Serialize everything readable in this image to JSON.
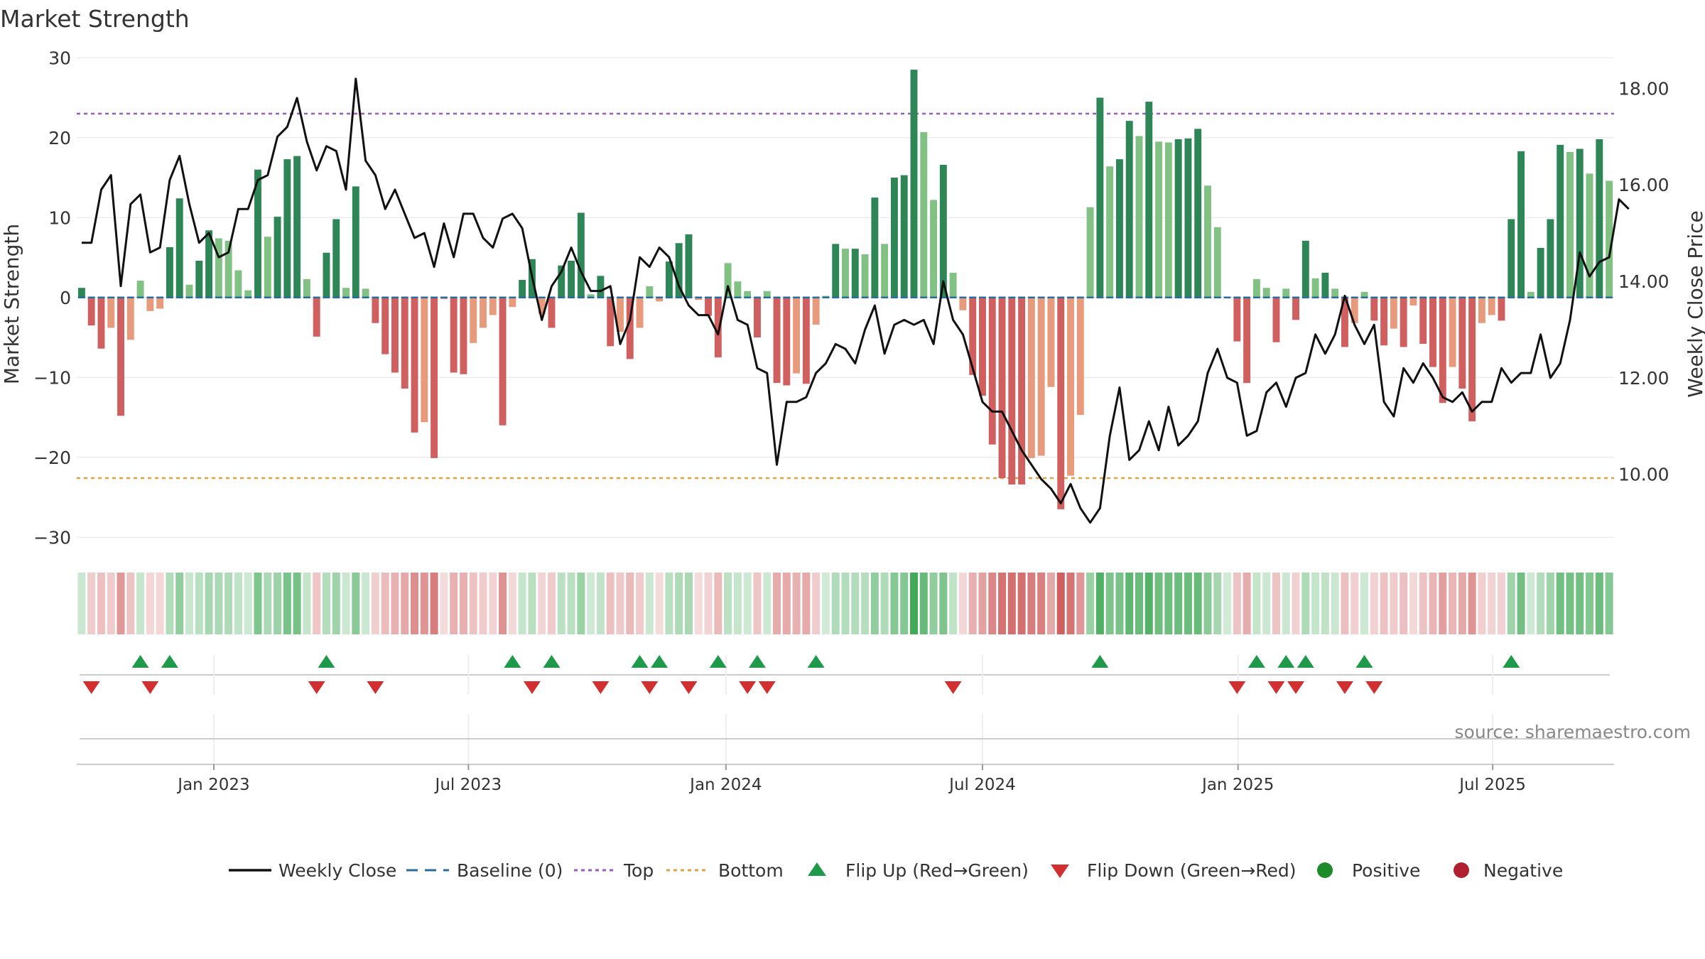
{
  "chart_data": {
    "type": "bar",
    "title": "Market Strength",
    "ylabel": "Market Strength",
    "y2label": "Weekly Close Price",
    "ylim": [
      -33,
      31
    ],
    "y2lim": [
      8.2,
      18.8
    ],
    "yticks": [
      30,
      20,
      10,
      0,
      -10,
      -20,
      -30
    ],
    "yticklabels": [
      "30",
      "20",
      "10",
      "0",
      "−10",
      "−20",
      "−30"
    ],
    "y2ticks": [
      18,
      16,
      14,
      12,
      10
    ],
    "y2ticklabels": [
      "18.00",
      "16.00",
      "14.00",
      "12.00",
      "10.00"
    ],
    "xlim": [
      0,
      157
    ],
    "xticks": [
      {
        "label": "Jan 2023",
        "week": 14
      },
      {
        "label": "Jul 2023",
        "week": 40
      },
      {
        "label": "Jan 2024",
        "week": 66.3
      },
      {
        "label": "Jul 2024",
        "week": 92.5
      },
      {
        "label": "Jan 2025",
        "week": 118.6
      },
      {
        "label": "Jul 2025",
        "week": 144.6
      }
    ],
    "top_line": 23,
    "bottom_line": -22.6,
    "strength": [
      1.2,
      -3.5,
      -6.4,
      -3.8,
      -14.8,
      -5.3,
      2.1,
      -1.7,
      -1.4,
      6.3,
      12.4,
      1.6,
      4.6,
      8.4,
      7.4,
      7.1,
      3.4,
      0.9,
      16,
      7.6,
      10.1,
      17.3,
      17.7,
      2.3,
      -4.9,
      5.6,
      9.8,
      1.2,
      13.9,
      1.1,
      -3.2,
      -7.1,
      -9.4,
      -11.4,
      -16.9,
      -15.6,
      -20.1,
      -0.2,
      -9.4,
      -9.6,
      -5.7,
      -3.8,
      -2.2,
      -16,
      -1.2,
      2.2,
      4.8,
      -2.1,
      -3.8,
      4,
      4.6,
      10.6,
      0.4,
      2.7,
      -6.1,
      -4.3,
      -7.7,
      -3.8,
      1.4,
      -0.5,
      4.5,
      6.8,
      7.9,
      -0.3,
      -2.3,
      -7.5,
      4.3,
      2,
      0.8,
      -5,
      0.8,
      -10.7,
      -11,
      -9.5,
      -10.8,
      -3.4,
      0.2,
      6.7,
      6.1,
      6.1,
      5.4,
      12.5,
      6.7,
      15,
      15.3,
      28.5,
      20.7,
      12.2,
      16.6,
      3.1,
      -1.6,
      -9.7,
      -12.3,
      -18.4,
      -22.6,
      -23.4,
      -23.4,
      -20.1,
      -19.8,
      -11.2,
      -26.5,
      -22.3,
      -14.7,
      11.3,
      25,
      16.4,
      17.3,
      22.1,
      20.2,
      24.5,
      19.5,
      19.4,
      19.8,
      19.9,
      21.1,
      14,
      8.8,
      0.1,
      -5.5,
      -10.7,
      2.3,
      1.2,
      -5.6,
      1.1,
      -2.8,
      7.1,
      2.4,
      3.1,
      1.1,
      -6.2,
      -3.2,
      0.7,
      -2.9,
      -6,
      -3.9,
      -6.2,
      -1,
      -5.8,
      -8.7,
      -13.2,
      -8.7,
      -11.4,
      -15.5,
      -3.2,
      -2.2,
      -2.9,
      9.8,
      18.3,
      0.7,
      6.2,
      9.8,
      19.1,
      18.2,
      18.6,
      15.5,
      19.8,
      14.6
    ],
    "weekly_close": [
      14.8,
      14.8,
      15.9,
      16.2,
      13.9,
      15.6,
      15.8,
      14.6,
      14.7,
      16.1,
      16.6,
      15.6,
      14.8,
      15,
      14.5,
      14.6,
      15.5,
      15.5,
      16.1,
      16.2,
      17,
      17.2,
      17.8,
      16.9,
      16.3,
      16.8,
      16.7,
      15.9,
      18.2,
      16.5,
      16.2,
      15.5,
      15.9,
      15.4,
      14.9,
      15,
      14.3,
      15.2,
      14.5,
      15.4,
      15.4,
      14.9,
      14.7,
      15.3,
      15.4,
      15.1,
      14.1,
      13.2,
      13.9,
      14.2,
      14.7,
      14.2,
      13.8,
      13.8,
      13.9,
      12.7,
      13.2,
      14.5,
      14.3,
      14.7,
      14.5,
      13.9,
      13.5,
      13.3,
      13.3,
      12.9,
      13.9,
      13.2,
      13.1,
      12.2,
      12.1,
      10.2,
      11.5,
      11.5,
      11.6,
      12.1,
      12.3,
      12.7,
      12.6,
      12.3,
      13,
      13.5,
      12.5,
      13.1,
      13.2,
      13.1,
      13.2,
      12.7,
      14,
      13.2,
      12.9,
      12.2,
      11.5,
      11.3,
      11.3,
      10.9,
      10.5,
      10.2,
      9.9,
      9.7,
      9.4,
      9.8,
      9.3,
      9,
      9.3,
      10.8,
      11.8,
      10.3,
      10.5,
      11.1,
      10.5,
      11.4,
      10.6,
      10.8,
      11.1,
      12.1,
      12.6,
      12,
      11.9,
      10.8,
      10.9,
      11.7,
      11.9,
      11.4,
      12,
      12.1,
      12.9,
      12.5,
      12.9,
      13.7,
      13.1,
      12.7,
      13.1,
      11.5,
      11.2,
      12.2,
      11.9,
      12.3,
      12,
      11.6,
      11.5,
      11.7,
      11.3,
      11.5,
      11.5,
      12.2,
      11.9,
      12.1,
      12.1,
      12.9,
      12,
      12.3,
      13.2,
      14.6,
      14.1,
      14.4,
      14.5,
      15.7,
      15.5
    ],
    "flip_up_weeks": [
      6,
      9,
      25,
      44,
      48,
      57,
      59,
      65,
      69,
      75,
      104,
      120,
      123,
      125,
      131,
      146
    ],
    "flip_down_weeks": [
      1,
      7,
      24,
      30,
      46,
      53,
      58,
      62,
      68,
      70,
      89,
      118,
      122,
      124,
      129,
      132
    ],
    "source_text": "source: sharemaestro.com",
    "legend": [
      {
        "label": "Weekly Close",
        "symbol": "line",
        "color": "#111111"
      },
      {
        "label": "Baseline (0)",
        "symbol": "dash",
        "color": "#2b6c9e"
      },
      {
        "label": "Top",
        "symbol": "dot",
        "color": "#9b59c6"
      },
      {
        "label": "Bottom",
        "symbol": "dot",
        "color": "#e0a040"
      },
      {
        "label": "Flip Up (Red→Green)",
        "symbol": "tri-up",
        "color": "#1e9a4a"
      },
      {
        "label": "Flip Down (Green→Red)",
        "symbol": "tri-down",
        "color": "#d23030"
      },
      {
        "label": "Positive",
        "symbol": "circle",
        "color": "#1e8a2a"
      },
      {
        "label": "Negative",
        "symbol": "circle",
        "color": "#b02030"
      }
    ],
    "colors": {
      "pos_strong": "#2e8656",
      "pos_light": "#82c184",
      "neg_strong": "#d06060",
      "neg_light": "#e89b7c",
      "baseline": "#2b6c9e",
      "top": "#9b59c6",
      "bottom": "#e0a040",
      "close_line": "#111111",
      "grid": "#e6e6e6"
    }
  }
}
